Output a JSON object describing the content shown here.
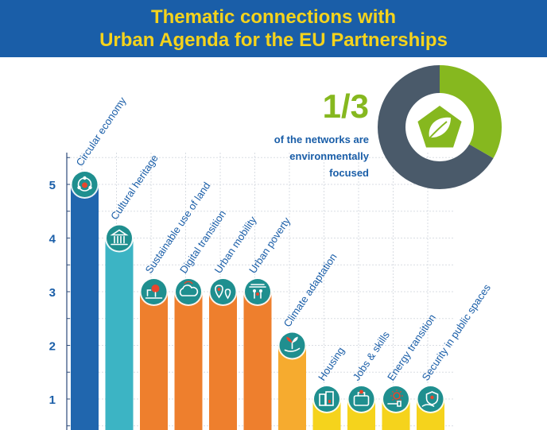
{
  "header": {
    "title_line1": "Thematic connections with",
    "title_line2": "Urban Agenda for the EU Partnerships"
  },
  "callout": {
    "fraction": "1/3",
    "text_line1": "of the networks are",
    "text_line2": "environmentally",
    "text_line3": "focused",
    "donut_share": 0.3333,
    "donut_colors": {
      "highlight": "#86b81f",
      "rest": "#4a5a6a"
    }
  },
  "chart_data": {
    "type": "bar",
    "title": "Thematic connections with Urban Agenda for the EU Partnerships",
    "categories": [
      "Circular economy",
      "Cultural heritage",
      "Sustainable use of land",
      "Digital transition",
      "Urban mobility",
      "Urban poverty",
      "Climate adaptation",
      "Housing",
      "Jobs & skills",
      "Energy transition",
      "Security in public spaces"
    ],
    "values": [
      5,
      4,
      3,
      3,
      3,
      3,
      2,
      1,
      1,
      1,
      1
    ],
    "icons": [
      "circular-arrows-icon",
      "museum-icon",
      "land-pin-icon",
      "cloud-icon",
      "location-pins-icon",
      "poverty-people-icon",
      "sprout-hand-icon",
      "buildings-icon",
      "briefcase-icon",
      "energy-plug-icon",
      "shield-hand-icon"
    ],
    "colors": [
      "#2066ae",
      "#3cb4c4",
      "#ee7f2d",
      "#ee7f2d",
      "#ee7f2d",
      "#ee7f2d",
      "#f6ab2f",
      "#f5d31c",
      "#f5d31c",
      "#f5d31c",
      "#f5d31c"
    ],
    "icon_circle_color": "#1f8f8f",
    "yticks": [
      1,
      2,
      3,
      4,
      5
    ],
    "ylim": [
      0.5,
      5.6
    ],
    "grid": true,
    "xlabel": "",
    "ylabel": ""
  }
}
